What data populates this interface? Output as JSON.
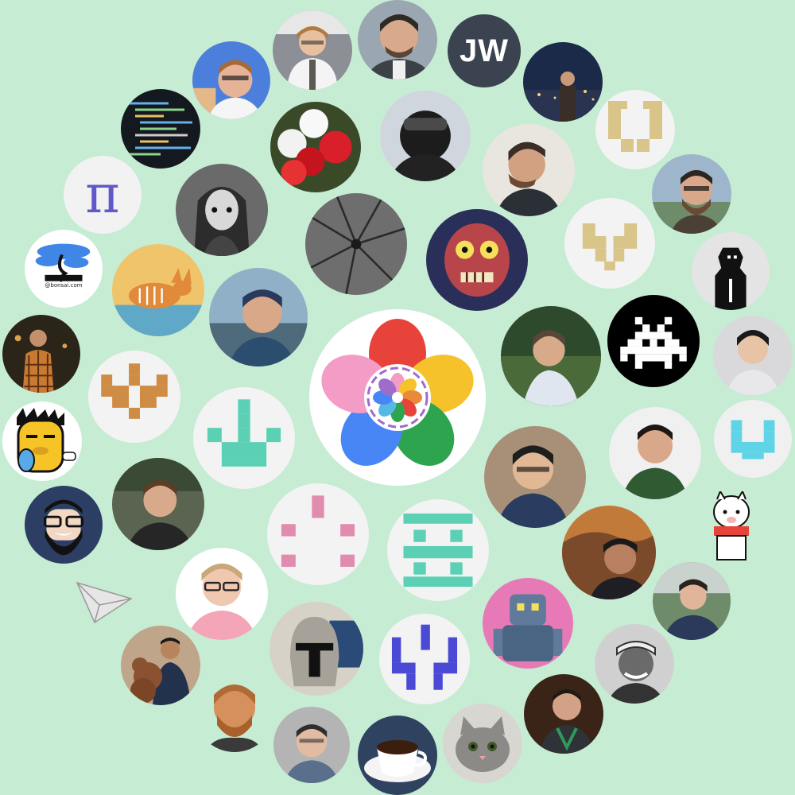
{
  "page": {
    "background": "#c6ecd3",
    "theme": "contributors-avatar-cloud"
  },
  "center_logo": {
    "name": "flower-logo",
    "colors": [
      "#f29cc6",
      "#4886f5",
      "#f6c22b",
      "#2ea44f",
      "#e8433a",
      "#9f6cc9",
      "#57b8e6"
    ]
  },
  "text_avatars": {
    "jw": {
      "text": "JW",
      "color": "#3b4350"
    },
    "pi": {
      "text": "π",
      "color": "#6259c9"
    },
    "bonsai": {
      "caption": "@bonsai.com"
    }
  },
  "avatar_icons": [
    "portrait-photo",
    "pixel-identicon",
    "mascot-cartoon",
    "bonsai-tree",
    "paper-plane-icon",
    "llama-icon",
    "coffee-cup",
    "cat-photo",
    "umbrella-photo",
    "balloons-photo",
    "code-screen",
    "space-invader"
  ]
}
